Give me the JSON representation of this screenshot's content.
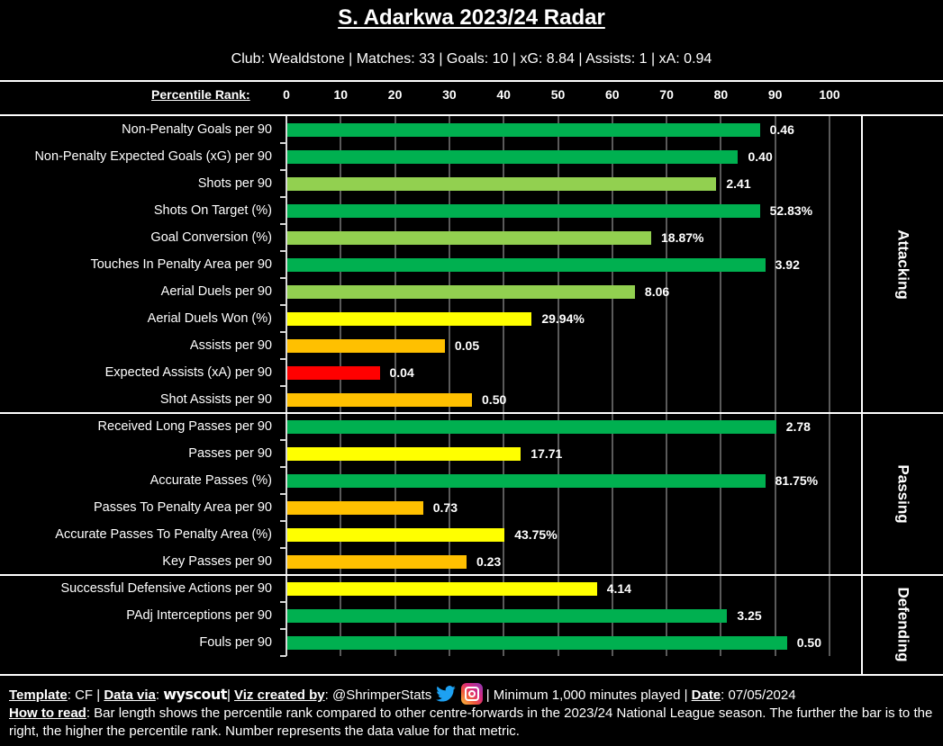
{
  "header": {
    "title": "S. Adarkwa 2023/24 Radar",
    "subtitle": "Club: Wealdstone | Matches: 33 | Goals: 10 | xG: 8.84 | Assists: 1 | xA: 0.94"
  },
  "colors": {
    "elite": "#00B050",
    "good": "#92D050",
    "average": "#FFFF00",
    "below_average": "#FFC000",
    "poor": "#FF0000",
    "gridline": "#5A5A5A"
  },
  "chart_data": {
    "type": "bar",
    "orientation": "horizontal",
    "title": "S. Adarkwa 2023/24 Radar",
    "xlabel": "Percentile Rank:",
    "xlim": [
      0,
      100
    ],
    "xticks": [
      "0",
      "10",
      "20",
      "30",
      "40",
      "50",
      "60",
      "70",
      "80",
      "90",
      "100"
    ],
    "grid": true,
    "sections": [
      {
        "name": "Attacking",
        "metrics": [
          {
            "label": "Non-Penalty Goals per 90",
            "percentile": 87,
            "value": "0.46",
            "color": "#00B050"
          },
          {
            "label": "Non-Penalty Expected Goals (xG) per 90",
            "percentile": 83,
            "value": "0.40",
            "color": "#00B050"
          },
          {
            "label": "Shots per 90",
            "percentile": 79,
            "value": "2.41",
            "color": "#92D050"
          },
          {
            "label": "Shots On Target (%)",
            "percentile": 87,
            "value": "52.83%",
            "color": "#00B050"
          },
          {
            "label": "Goal Conversion (%)",
            "percentile": 67,
            "value": "18.87%",
            "color": "#92D050"
          },
          {
            "label": "Touches In Penalty Area per 90",
            "percentile": 88,
            "value": "3.92",
            "color": "#00B050"
          },
          {
            "label": "Aerial Duels per 90",
            "percentile": 64,
            "value": "8.06",
            "color": "#92D050"
          },
          {
            "label": "Aerial Duels Won (%)",
            "percentile": 45,
            "value": "29.94%",
            "color": "#FFFF00"
          },
          {
            "label": "Assists per 90",
            "percentile": 29,
            "value": "0.05",
            "color": "#FFC000"
          },
          {
            "label": "Expected Assists (xA) per 90",
            "percentile": 17,
            "value": "0.04",
            "color": "#FF0000"
          },
          {
            "label": "Shot Assists per 90",
            "percentile": 34,
            "value": "0.50",
            "color": "#FFC000"
          }
        ]
      },
      {
        "name": "Passing",
        "metrics": [
          {
            "label": "Received Long Passes per 90",
            "percentile": 90,
            "value": "2.78",
            "color": "#00B050"
          },
          {
            "label": "Passes per 90",
            "percentile": 43,
            "value": "17.71",
            "color": "#FFFF00"
          },
          {
            "label": "Accurate Passes (%)",
            "percentile": 88,
            "value": "81.75%",
            "color": "#00B050"
          },
          {
            "label": "Passes To Penalty Area per 90",
            "percentile": 25,
            "value": "0.73",
            "color": "#FFC000"
          },
          {
            "label": "Accurate Passes To Penalty Area (%)",
            "percentile": 40,
            "value": "43.75%",
            "color": "#FFFF00"
          },
          {
            "label": "Key Passes per 90",
            "percentile": 33,
            "value": "0.23",
            "color": "#FFC000"
          }
        ]
      },
      {
        "name": "Defending",
        "metrics": [
          {
            "label": "Successful Defensive Actions per 90",
            "percentile": 57,
            "value": "4.14",
            "color": "#FFFF00"
          },
          {
            "label": "PAdj Interceptions per 90",
            "percentile": 81,
            "value": "3.25",
            "color": "#00B050"
          },
          {
            "label": "Fouls per 90",
            "percentile": 92,
            "value": "0.50",
            "color": "#00B050"
          }
        ]
      }
    ]
  },
  "footer": {
    "template_label": "Template",
    "template_value": ": CF | ",
    "data_via_label": "Data via",
    "data_via_sep": ": ",
    "data_source": "wyscout",
    "sep1": "| ",
    "viz_label": "Viz created by",
    "viz_value": ": @ShrimperStats ",
    "twitter_icon": "twitter-bird-icon",
    "instagram_icon": "instagram-icon",
    "min_minutes": " | Minimum 1,000 minutes played | ",
    "date_label": "Date",
    "date_value": ": 07/05/2024",
    "how_to_read_label": "How to read",
    "how_to_read_text": ": Bar length shows the percentile rank compared to other centre-forwards in the 2023/24 National League season. The further the bar is to the right, the higher the percentile rank. Number represents the data value for that metric."
  }
}
